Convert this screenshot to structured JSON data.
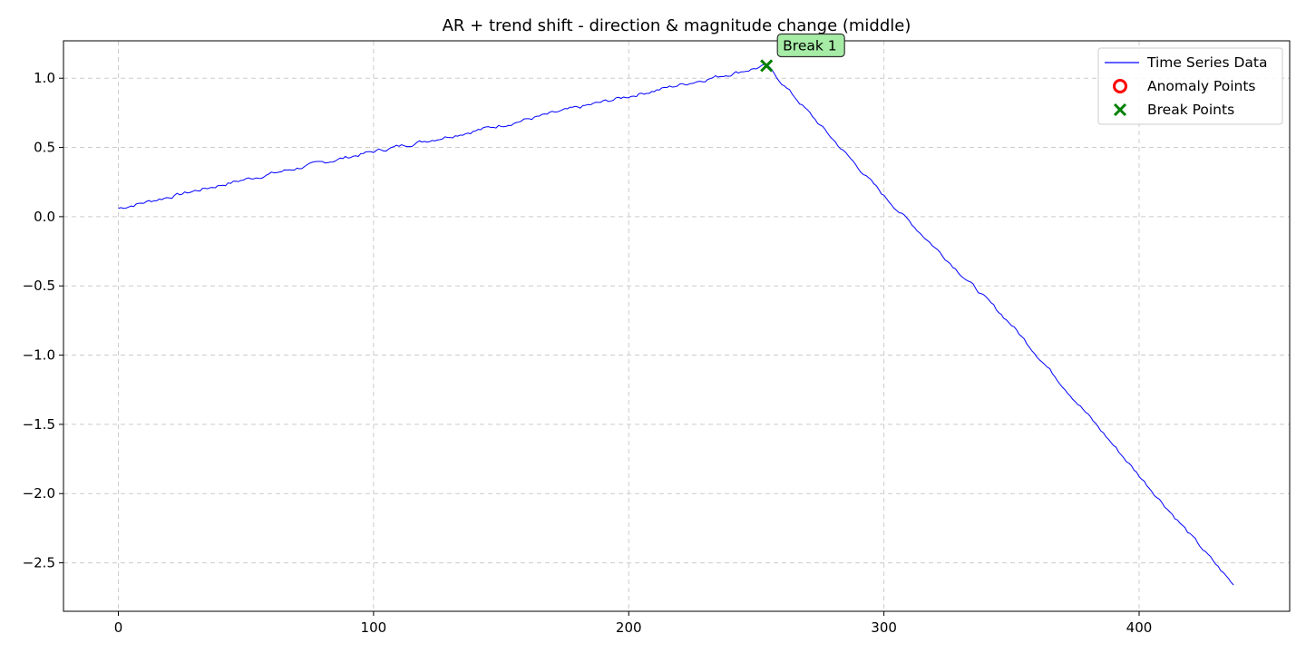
{
  "chart_data": {
    "type": "line",
    "title": "AR + trend shift - direction & magnitude change (middle)",
    "xlabel": "",
    "ylabel": "",
    "xlim": [
      -21.5,
      459
    ],
    "ylim": [
      -2.85,
      1.27
    ],
    "x_ticks": [
      0,
      100,
      200,
      300,
      400
    ],
    "y_ticks": [
      1.0,
      0.5,
      0.0,
      -0.5,
      -1.0,
      -1.5,
      -2.0,
      -2.5
    ],
    "y_tick_labels": [
      "1.0",
      "0.5",
      "0.0",
      "−0.5",
      "−1.0",
      "−1.5",
      "−2.0",
      "−2.5"
    ],
    "grid": true,
    "legend_position": "top-right",
    "series": [
      {
        "name": "Time Series Data",
        "color": "#0000ff",
        "x_start": 0,
        "x_end": 437,
        "keypoints": [
          {
            "x": 0,
            "y": 0.06
          },
          {
            "x": 50,
            "y": 0.27
          },
          {
            "x": 100,
            "y": 0.47
          },
          {
            "x": 150,
            "y": 0.66
          },
          {
            "x": 200,
            "y": 0.87
          },
          {
            "x": 254,
            "y": 1.09
          },
          {
            "x": 300,
            "y": 0.15
          },
          {
            "x": 350,
            "y": -0.78
          },
          {
            "x": 400,
            "y": -1.87
          },
          {
            "x": 437,
            "y": -2.66
          }
        ],
        "noise_amplitude": 0.012
      },
      {
        "name": "Anomaly Points",
        "color": "#ff0000",
        "marker": "circle",
        "points": []
      },
      {
        "name": "Break Points",
        "color": "#008000",
        "marker": "x",
        "points": [
          {
            "x": 254,
            "y": 1.09
          }
        ]
      }
    ],
    "annotations": [
      {
        "text": "Break 1",
        "x": 254,
        "y": 1.09,
        "background": "#a6eca6"
      }
    ]
  }
}
